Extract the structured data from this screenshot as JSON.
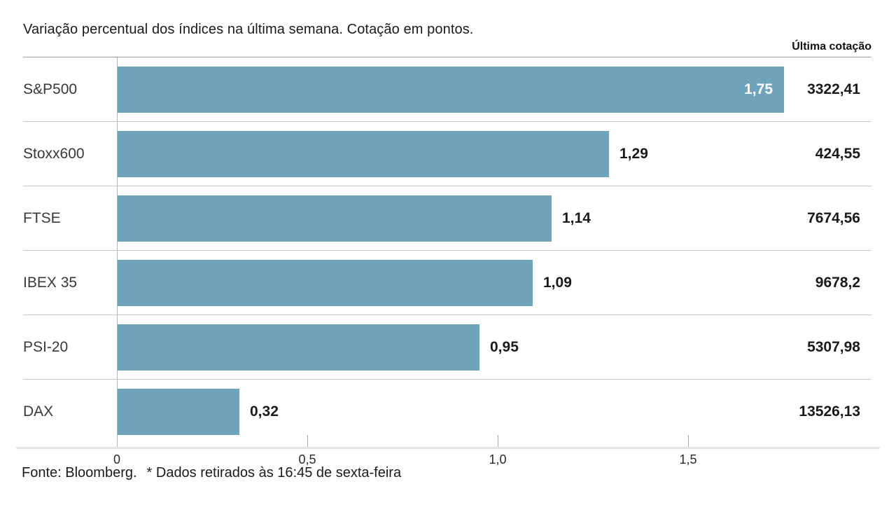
{
  "title": "Variação percentual dos índices na última semana. Cotação em pontos.",
  "column_header": "Última cotação",
  "footer": {
    "source": "Fonte: Bloomberg.",
    "note": "* Dados retirados às 16:45 de sexta-feira"
  },
  "colors": {
    "bar": "#6fa3bc",
    "text": "#1a1a1a",
    "inside_label": "#ffffff",
    "header_rule": "#9a9a9a",
    "row_separator": "#c9c9c9",
    "axis_line": "#e3e3e3",
    "zero_gridline": "#b5b5b5"
  },
  "chart_data": {
    "type": "bar",
    "orientation": "horizontal",
    "title": "Variação percentual dos índices na última semana. Cotação em pontos.",
    "categories": [
      "S&P500",
      "Stoxx600",
      "FTSE",
      "IBEX 35",
      "PSI-20",
      "DAX"
    ],
    "series": [
      {
        "name": "Variação percentual (%)",
        "values": [
          1.75,
          1.29,
          1.14,
          1.09,
          0.95,
          0.32
        ],
        "labels": [
          "1,75",
          "1,29",
          "1,14",
          "1,09",
          "0,95",
          "0,32"
        ],
        "label_inside": [
          true,
          false,
          false,
          false,
          false,
          false
        ]
      },
      {
        "name": "Última cotação",
        "values": [
          3322.41,
          424.55,
          7674.56,
          9678.2,
          5307.98,
          13526.13
        ],
        "labels": [
          "3322,41",
          "424,55",
          "7674,56",
          "9678,2",
          "5307,98",
          "13526,13"
        ]
      }
    ],
    "xlabel": "",
    "ylabel": "",
    "xlim": [
      0,
      2
    ],
    "grid": false,
    "legend": "none",
    "xticks": [
      {
        "value": 0,
        "label": "0"
      },
      {
        "value": 0.5,
        "label": "0,5"
      },
      {
        "value": 1.0,
        "label": "1,0"
      },
      {
        "value": 1.5,
        "label": "1,5"
      }
    ]
  }
}
